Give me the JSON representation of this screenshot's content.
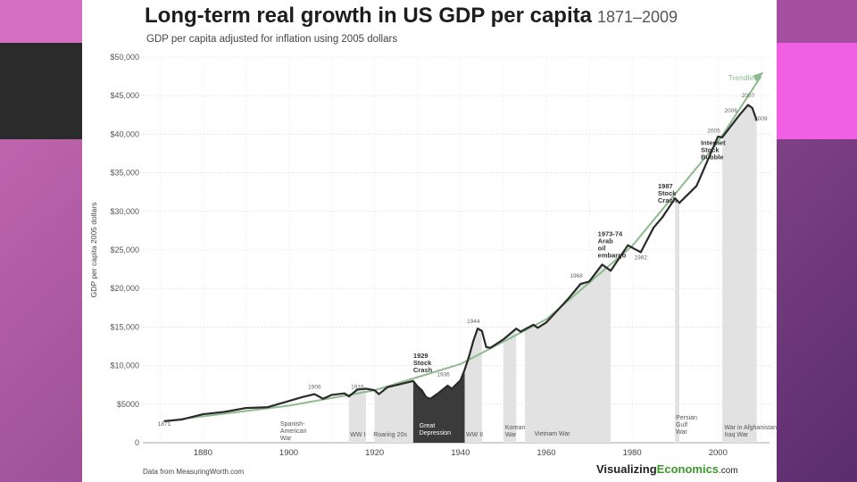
{
  "title": "Long-term real growth in US GDP per capita",
  "title_years": "1871–2009",
  "subtitle": "GDP per capita adjusted for inflation using 2005 dollars",
  "source": "Data from MeasuringWorth.com",
  "brand_a": "Visualizing",
  "brand_b": "Economics",
  "brand_c": ".com",
  "chart_data": {
    "type": "area",
    "ylabel": "GDP per capita 2005 dollars",
    "xlim": [
      1866,
      2012
    ],
    "ylim": [
      0,
      50000
    ],
    "x_ticks": [
      1880,
      1900,
      1920,
      1940,
      1960,
      1980,
      2000
    ],
    "y_ticks": [
      {
        "value": 0,
        "label": "0"
      },
      {
        "value": 5000,
        "label": "$5000"
      },
      {
        "value": 10000,
        "label": "$10,000"
      },
      {
        "value": 15000,
        "label": "$15,000"
      },
      {
        "value": 20000,
        "label": "$20,000"
      },
      {
        "value": 25000,
        "label": "$25,000"
      },
      {
        "value": 30000,
        "label": "$30,000"
      },
      {
        "value": 35000,
        "label": "$35,000"
      },
      {
        "value": 40000,
        "label": "$40,000"
      },
      {
        "value": 45000,
        "label": "$45,000"
      },
      {
        "value": 50000,
        "label": "$50,000"
      }
    ],
    "series": [
      {
        "name": "GDP per capita",
        "x": [
          1871,
          1875,
          1880,
          1885,
          1890,
          1895,
          1900,
          1903,
          1906,
          1908,
          1910,
          1913,
          1914,
          1916,
          1918,
          1920,
          1921,
          1923,
          1926,
          1929,
          1930,
          1931,
          1932,
          1933,
          1935,
          1937,
          1938,
          1940,
          1941,
          1942,
          1943,
          1944,
          1945,
          1946,
          1947,
          1950,
          1953,
          1954,
          1957,
          1958,
          1960,
          1965,
          1968,
          1970,
          1973,
          1975,
          1979,
          1980,
          1982,
          1985,
          1987,
          1990,
          1991,
          1995,
          2000,
          2001,
          2005,
          2007,
          2008,
          2009
        ],
        "y": [
          2800,
          3000,
          3700,
          4000,
          4500,
          4600,
          5400,
          5900,
          6300,
          5700,
          6200,
          6400,
          6000,
          6900,
          7000,
          6800,
          6300,
          7200,
          7600,
          8000,
          7300,
          6800,
          5900,
          5700,
          6500,
          7400,
          7000,
          8100,
          9500,
          11200,
          13200,
          14800,
          14500,
          12400,
          12300,
          13400,
          14800,
          14400,
          15300,
          14900,
          15600,
          18600,
          20600,
          20900,
          23100,
          22300,
          25600,
          25300,
          24700,
          27900,
          29200,
          31700,
          31100,
          33300,
          39700,
          39600,
          42500,
          43800,
          43400,
          41800
        ]
      },
      {
        "name": "Trendline",
        "x": [
          1871,
          1900,
          1920,
          1940,
          1960,
          1980,
          2000,
          2010
        ],
        "y": [
          2800,
          4800,
          6800,
          10200,
          16000,
          25500,
          39000,
          47500
        ]
      }
    ],
    "events": [
      {
        "label": "Spanish-American War",
        "start": 1898,
        "end": 1898
      },
      {
        "label": "WW I",
        "start": 1914,
        "end": 1918
      },
      {
        "label": "Roaring 20s",
        "start": 1920,
        "end": 1929
      },
      {
        "label": "Great Depression",
        "start": 1929,
        "end": 1941
      },
      {
        "label": "WW II",
        "start": 1941,
        "end": 1945
      },
      {
        "label": "Korean War",
        "start": 1950,
        "end": 1953
      },
      {
        "label": "Vietnam War",
        "start": 1955,
        "end": 1975
      },
      {
        "label": "Persian Gulf War",
        "start": 1990,
        "end": 1991
      },
      {
        "label": "War in Afghanistan Iraq War",
        "start": 2001,
        "end": 2009
      }
    ],
    "annotations": [
      {
        "label": "Trendline",
        "x": 2006,
        "y": 47000
      },
      {
        "label": "2007",
        "x": 2007,
        "y": 44800
      },
      {
        "label": "2006",
        "x": 2003,
        "y": 42800
      },
      {
        "label": "2005",
        "x": 1999,
        "y": 40200
      },
      {
        "label": "2009",
        "x": 2010,
        "y": 41800
      },
      {
        "label": "Internet Stock Bubble",
        "x": 1996,
        "y": 38600
      },
      {
        "label": "1987 Stock Crash",
        "x": 1986,
        "y": 33000
      },
      {
        "label": "1982",
        "x": 1982,
        "y": 23800
      },
      {
        "label": "1973-74 Arab oil embargo",
        "x": 1972,
        "y": 26800
      },
      {
        "label": "1968",
        "x": 1967,
        "y": 21400
      },
      {
        "label": "1944",
        "x": 1943,
        "y": 15500
      },
      {
        "label": "1929 Stock Crash",
        "x": 1929,
        "y": 11000
      },
      {
        "label": "1936",
        "x": 1936,
        "y": 8600
      },
      {
        "label": "1906",
        "x": 1906,
        "y": 7000
      },
      {
        "label": "1916",
        "x": 1916,
        "y": 7000
      },
      {
        "label": "1871",
        "x": 1871,
        "y": 2200
      }
    ]
  }
}
